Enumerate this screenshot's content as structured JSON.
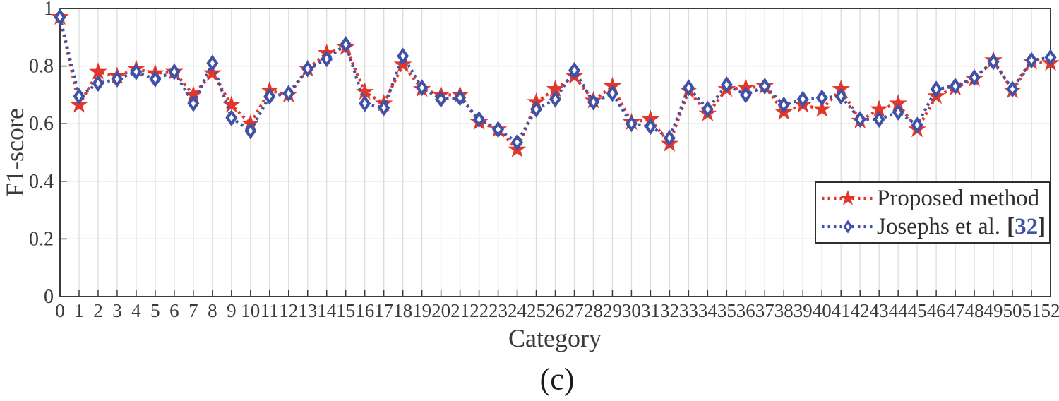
{
  "figure": {
    "ylabel": "F1-score",
    "xlabel": "Category",
    "caption": "(c)"
  },
  "legend": {
    "item1_label": "Proposed method",
    "item2_text": "Josephs et al.",
    "citation_open": "[",
    "citation_number": "32",
    "citation_close": "]"
  },
  "colors": {
    "proposed_red": "#e3362b",
    "josephs_blue": "#4052a5",
    "grid": "#dcdcdc",
    "axis": "#3a3a3a",
    "tick_text": "#3a3a3a",
    "legend_text": "#2e2e2e",
    "citation": "#4052a5"
  },
  "chart_data": {
    "type": "line",
    "title": "",
    "xlabel": "Category",
    "ylabel": "F1-score",
    "x": [
      0,
      1,
      2,
      3,
      4,
      5,
      6,
      7,
      8,
      9,
      10,
      11,
      12,
      13,
      14,
      15,
      16,
      17,
      18,
      19,
      20,
      21,
      22,
      23,
      24,
      25,
      26,
      27,
      28,
      29,
      30,
      31,
      32,
      33,
      34,
      35,
      36,
      37,
      38,
      39,
      40,
      41,
      42,
      43,
      44,
      45,
      46,
      47,
      48,
      49,
      50,
      51,
      52
    ],
    "xlim": [
      0,
      52
    ],
    "ylim": [
      0,
      1
    ],
    "yticks": [
      0,
      0.2,
      0.4,
      0.6,
      0.8,
      1
    ],
    "ytick_labels": [
      "0",
      "0.2",
      "0.4",
      "0.6",
      "0.8",
      "1"
    ],
    "grid": true,
    "legend_position": "lower right",
    "line_style": "dotted",
    "series": [
      {
        "name": "Proposed method",
        "marker": "star",
        "color": "#e3362b",
        "values": [
          0.97,
          0.665,
          0.78,
          0.765,
          0.79,
          0.775,
          0.78,
          0.7,
          0.775,
          0.665,
          0.6,
          0.715,
          0.7,
          0.79,
          0.845,
          0.865,
          0.71,
          0.67,
          0.805,
          0.72,
          0.7,
          0.7,
          0.605,
          0.58,
          0.51,
          0.675,
          0.72,
          0.765,
          0.68,
          0.73,
          0.605,
          0.615,
          0.53,
          0.715,
          0.635,
          0.72,
          0.725,
          0.73,
          0.64,
          0.665,
          0.65,
          0.72,
          0.61,
          0.65,
          0.67,
          0.58,
          0.695,
          0.725,
          0.755,
          0.82,
          0.715,
          0.815,
          0.81
        ]
      },
      {
        "name": "Josephs et al. [32]",
        "marker": "diamond",
        "color": "#4052a5",
        "values": [
          0.97,
          0.695,
          0.74,
          0.755,
          0.78,
          0.755,
          0.78,
          0.67,
          0.81,
          0.62,
          0.575,
          0.695,
          0.705,
          0.79,
          0.825,
          0.875,
          0.67,
          0.655,
          0.835,
          0.725,
          0.685,
          0.69,
          0.615,
          0.58,
          0.535,
          0.65,
          0.685,
          0.785,
          0.675,
          0.705,
          0.6,
          0.59,
          0.55,
          0.725,
          0.65,
          0.735,
          0.7,
          0.73,
          0.665,
          0.685,
          0.69,
          0.695,
          0.615,
          0.615,
          0.64,
          0.595,
          0.72,
          0.73,
          0.76,
          0.815,
          0.72,
          0.82,
          0.83
        ]
      }
    ]
  }
}
